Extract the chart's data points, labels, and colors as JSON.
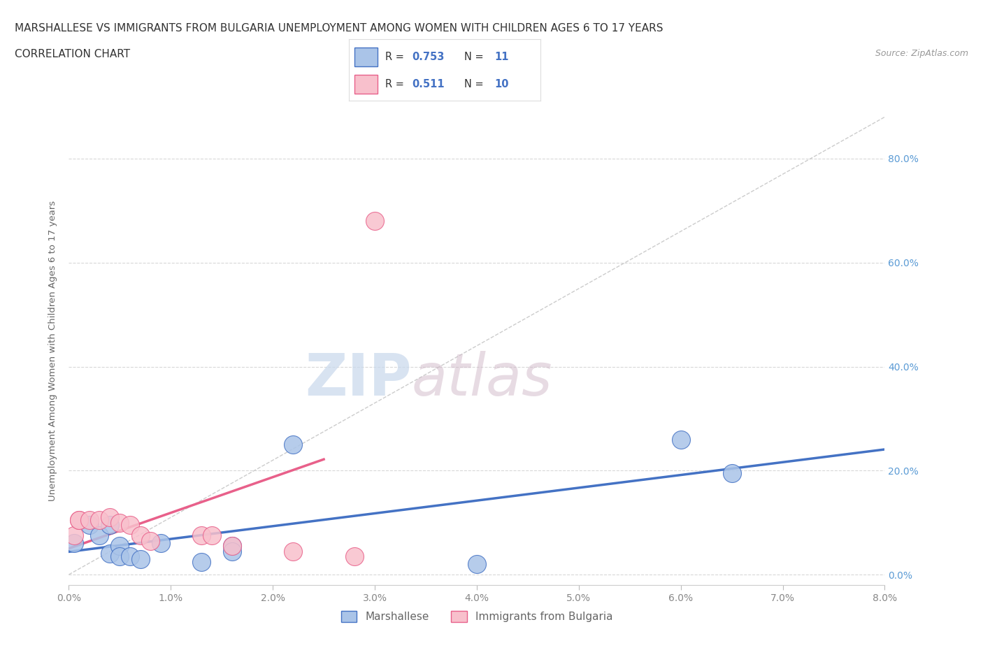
{
  "title_line1": "MARSHALLESE VS IMMIGRANTS FROM BULGARIA UNEMPLOYMENT AMONG WOMEN WITH CHILDREN AGES 6 TO 17 YEARS",
  "title_line2": "CORRELATION CHART",
  "source": "Source: ZipAtlas.com",
  "ylabel_label": "Unemployment Among Women with Children Ages 6 to 17 years",
  "xlim": [
    0.0,
    0.08
  ],
  "ylim": [
    -0.02,
    0.88
  ],
  "blue_scatter": [
    [
      0.0005,
      0.06
    ],
    [
      0.002,
      0.095
    ],
    [
      0.003,
      0.075
    ],
    [
      0.004,
      0.095
    ],
    [
      0.004,
      0.04
    ],
    [
      0.005,
      0.055
    ],
    [
      0.005,
      0.035
    ],
    [
      0.006,
      0.035
    ],
    [
      0.007,
      0.03
    ],
    [
      0.009,
      0.06
    ],
    [
      0.013,
      0.025
    ],
    [
      0.016,
      0.055
    ],
    [
      0.016,
      0.045
    ],
    [
      0.022,
      0.25
    ],
    [
      0.04,
      0.02
    ],
    [
      0.06,
      0.26
    ],
    [
      0.065,
      0.195
    ]
  ],
  "pink_scatter": [
    [
      0.0005,
      0.075
    ],
    [
      0.001,
      0.105
    ],
    [
      0.001,
      0.105
    ],
    [
      0.002,
      0.105
    ],
    [
      0.003,
      0.105
    ],
    [
      0.004,
      0.11
    ],
    [
      0.005,
      0.1
    ],
    [
      0.006,
      0.095
    ],
    [
      0.007,
      0.075
    ],
    [
      0.008,
      0.065
    ],
    [
      0.013,
      0.075
    ],
    [
      0.014,
      0.075
    ],
    [
      0.016,
      0.055
    ],
    [
      0.022,
      0.045
    ],
    [
      0.028,
      0.035
    ],
    [
      0.03,
      0.68
    ]
  ],
  "blue_color": "#aac4e8",
  "pink_color": "#f8c0cc",
  "blue_line_color": "#4472c4",
  "pink_line_color": "#e8608a",
  "diagonal_color": "#cccccc",
  "R_blue": 0.753,
  "N_blue": 11,
  "R_pink": 0.511,
  "N_pink": 10,
  "legend_label_blue": "Marshallese",
  "legend_label_pink": "Immigrants from Bulgaria",
  "watermark_zip": "ZIP",
  "watermark_atlas": "atlas",
  "background_color": "#ffffff",
  "grid_color": "#d8d8d8",
  "ytick_color": "#5b9bd5",
  "xtick_color": "#888888"
}
